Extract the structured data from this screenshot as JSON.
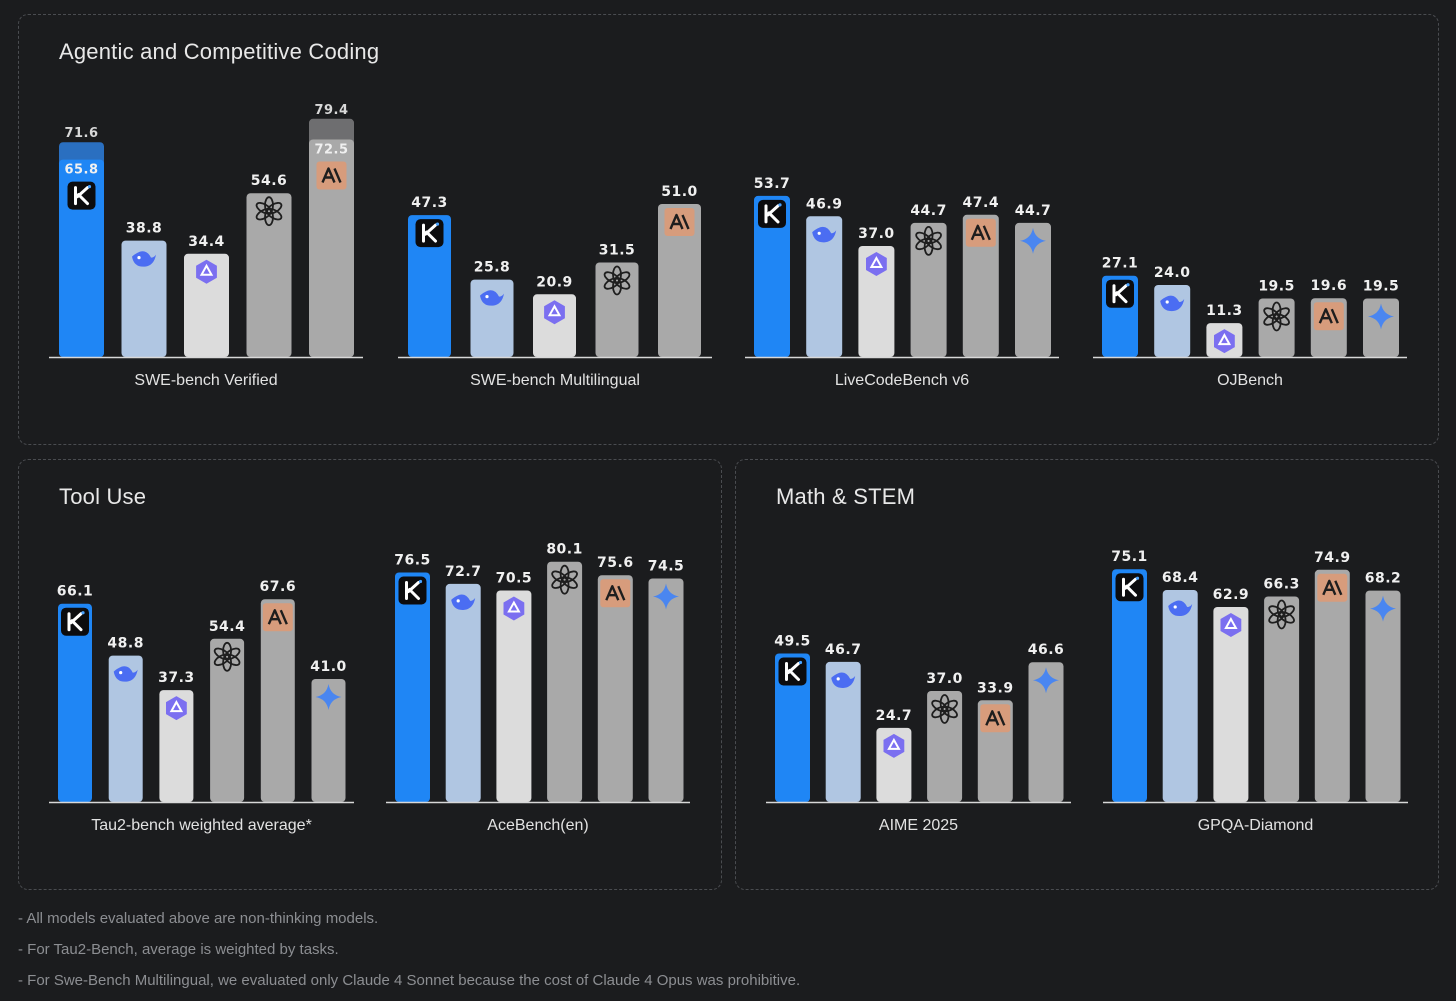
{
  "sections": [
    {
      "id": "coding",
      "title": "Agentic and Competitive Coding"
    },
    {
      "id": "tools",
      "title": "Tool Use"
    },
    {
      "id": "math",
      "title": "Math & STEM"
    }
  ],
  "colors": {
    "kimi": "#1f86f5",
    "deepseek": "#b0c6e2",
    "qwen": "#dcdcdc",
    "openai": "#a9a9a9",
    "anthropic": "#a9a9a9",
    "gemini": "#a9a9a9",
    "anthropic_badge": "#d79c7c",
    "stack_kimi_top": "#2a6fc0",
    "stack_anthropic_top": "#6e6e70"
  },
  "model_icons": {
    "kimi": "kimi-k-logo-icon",
    "deepseek": "deepseek-whale-icon",
    "qwen": "qwen-logo-icon",
    "openai": "openai-logo-icon",
    "anthropic": "anthropic-logo-icon",
    "gemini": "gemini-sparkle-icon"
  },
  "chart_data": [
    {
      "type": "bar",
      "section": "coding",
      "xlabel": "SWE-bench Verified",
      "categories": [
        "kimi",
        "deepseek",
        "qwen",
        "openai",
        "anthropic"
      ],
      "values": [
        65.8,
        38.8,
        34.4,
        54.6,
        72.5
      ],
      "stacked_top": [
        71.6,
        null,
        null,
        null,
        79.4
      ],
      "labels": [
        "65.8",
        "38.8",
        "34.4",
        "54.6",
        "72.5"
      ],
      "top_labels": [
        "71.6",
        null,
        null,
        null,
        "79.4"
      ]
    },
    {
      "type": "bar",
      "section": "coding",
      "xlabel": "SWE-bench Multilingual",
      "categories": [
        "kimi",
        "deepseek",
        "qwen",
        "openai",
        "anthropic"
      ],
      "values": [
        47.3,
        25.8,
        20.9,
        31.5,
        51.0
      ],
      "labels": [
        "47.3",
        "25.8",
        "20.9",
        "31.5",
        "51.0"
      ]
    },
    {
      "type": "bar",
      "section": "coding",
      "xlabel": "LiveCodeBench v6",
      "categories": [
        "kimi",
        "deepseek",
        "qwen",
        "openai",
        "anthropic",
        "gemini"
      ],
      "values": [
        53.7,
        46.9,
        37.0,
        44.7,
        47.4,
        44.7
      ],
      "labels": [
        "53.7",
        "46.9",
        "37.0",
        "44.7",
        "47.4",
        "44.7"
      ]
    },
    {
      "type": "bar",
      "section": "coding",
      "xlabel": "OJBench",
      "categories": [
        "kimi",
        "deepseek",
        "qwen",
        "openai",
        "anthropic",
        "gemini"
      ],
      "values": [
        27.1,
        24.0,
        11.3,
        19.5,
        19.6,
        19.5
      ],
      "labels": [
        "27.1",
        "24.0",
        "11.3",
        "19.5",
        "19.6",
        "19.5"
      ]
    },
    {
      "type": "bar",
      "section": "tools",
      "xlabel": "Tau2-bench weighted average*",
      "categories": [
        "kimi",
        "deepseek",
        "qwen",
        "openai",
        "anthropic",
        "gemini"
      ],
      "values": [
        66.1,
        48.8,
        37.3,
        54.4,
        67.6,
        41.0
      ],
      "labels": [
        "66.1",
        "48.8",
        "37.3",
        "54.4",
        "67.6",
        "41.0"
      ]
    },
    {
      "type": "bar",
      "section": "tools",
      "xlabel": "AceBench(en)",
      "categories": [
        "kimi",
        "deepseek",
        "qwen",
        "openai",
        "anthropic",
        "gemini"
      ],
      "values": [
        76.5,
        72.7,
        70.5,
        80.1,
        75.6,
        74.5
      ],
      "labels": [
        "76.5",
        "72.7",
        "70.5",
        "80.1",
        "75.6",
        "74.5"
      ]
    },
    {
      "type": "bar",
      "section": "math",
      "xlabel": "AIME 2025",
      "categories": [
        "kimi",
        "deepseek",
        "qwen",
        "openai",
        "anthropic",
        "gemini"
      ],
      "values": [
        49.5,
        46.7,
        24.7,
        37.0,
        33.9,
        46.6
      ],
      "labels": [
        "49.5",
        "46.7",
        "24.7",
        "37.0",
        "33.9",
        "46.6"
      ]
    },
    {
      "type": "bar",
      "section": "math",
      "xlabel": "GPQA-Diamond",
      "categories": [
        "kimi",
        "deepseek",
        "qwen",
        "openai",
        "anthropic",
        "gemini"
      ],
      "values": [
        75.1,
        68.4,
        62.9,
        66.3,
        74.9,
        68.2
      ],
      "labels": [
        "75.1",
        "68.4",
        "62.9",
        "66.3",
        "74.9",
        "68.2"
      ]
    }
  ],
  "footnotes": [
    "- All models evaluated above are non-thinking models.",
    "- For Tau2-Bench, average is weighted by tasks.",
    "- For Swe-Bench Multilingual, we evaluated only Claude 4 Sonnet because the cost of Claude 4 Opus was prohibitive."
  ]
}
